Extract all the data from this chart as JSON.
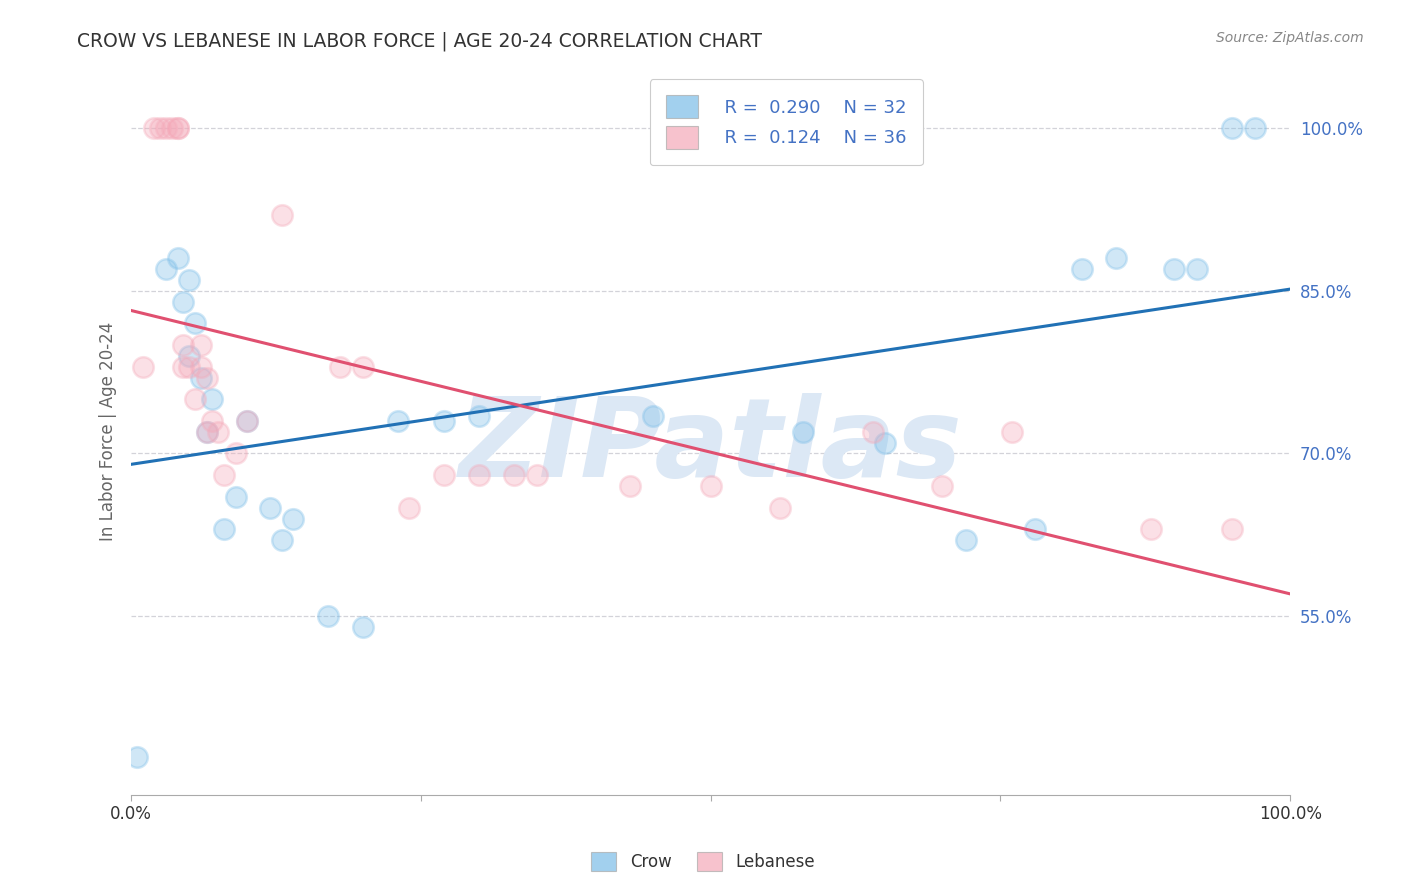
{
  "title": "CROW VS LEBANESE IN LABOR FORCE | AGE 20-24 CORRELATION CHART",
  "source": "Source: ZipAtlas.com",
  "ylabel": "In Labor Force | Age 20-24",
  "xlim": [
    0.0,
    1.0
  ],
  "ylim": [
    0.385,
    1.055
  ],
  "yticks": [
    0.55,
    0.7,
    0.85,
    1.0
  ],
  "ytick_labels": [
    "55.0%",
    "70.0%",
    "85.0%",
    "100.0%"
  ],
  "crow_R": 0.29,
  "crow_N": 32,
  "lebanese_R": 0.124,
  "lebanese_N": 36,
  "crow_color": "#7bbde8",
  "lebanese_color": "#f4a8b8",
  "crow_line_color": "#2171b5",
  "lebanese_line_color": "#e05070",
  "watermark": "ZIPatlas",
  "watermark_color": "#dce8f5",
  "crow_x": [
    0.005,
    0.03,
    0.04,
    0.045,
    0.05,
    0.05,
    0.055,
    0.06,
    0.065,
    0.07,
    0.08,
    0.09,
    0.1,
    0.12,
    0.13,
    0.14,
    0.17,
    0.2,
    0.23,
    0.27,
    0.3,
    0.45,
    0.58,
    0.65,
    0.72,
    0.78,
    0.82,
    0.85,
    0.9,
    0.92,
    0.95,
    0.97
  ],
  "crow_y": [
    0.42,
    0.87,
    0.88,
    0.84,
    0.86,
    0.79,
    0.82,
    0.77,
    0.72,
    0.75,
    0.63,
    0.66,
    0.73,
    0.65,
    0.62,
    0.64,
    0.55,
    0.54,
    0.73,
    0.73,
    0.735,
    0.735,
    0.72,
    0.71,
    0.62,
    0.63,
    0.87,
    0.88,
    0.87,
    0.87,
    1.0,
    1.0
  ],
  "lebanese_x": [
    0.01,
    0.02,
    0.025,
    0.03,
    0.035,
    0.04,
    0.04,
    0.045,
    0.045,
    0.05,
    0.055,
    0.06,
    0.06,
    0.065,
    0.065,
    0.07,
    0.075,
    0.08,
    0.09,
    0.1,
    0.13,
    0.18,
    0.2,
    0.24,
    0.27,
    0.3,
    0.33,
    0.35,
    0.43,
    0.5,
    0.56,
    0.64,
    0.7,
    0.76,
    0.88,
    0.95
  ],
  "lebanese_y": [
    0.78,
    1.0,
    1.0,
    1.0,
    1.0,
    1.0,
    1.0,
    0.8,
    0.78,
    0.78,
    0.75,
    0.8,
    0.78,
    0.77,
    0.72,
    0.73,
    0.72,
    0.68,
    0.7,
    0.73,
    0.92,
    0.78,
    0.78,
    0.65,
    0.68,
    0.68,
    0.68,
    0.68,
    0.67,
    0.67,
    0.65,
    0.72,
    0.67,
    0.72,
    0.63,
    0.63
  ],
  "background_color": "#ffffff",
  "grid_color": "#c8c8d0",
  "title_color": "#333333",
  "axis_label_color": "#666666",
  "tick_color": "#4472c4",
  "bottom_legend_text_color": "#333333"
}
